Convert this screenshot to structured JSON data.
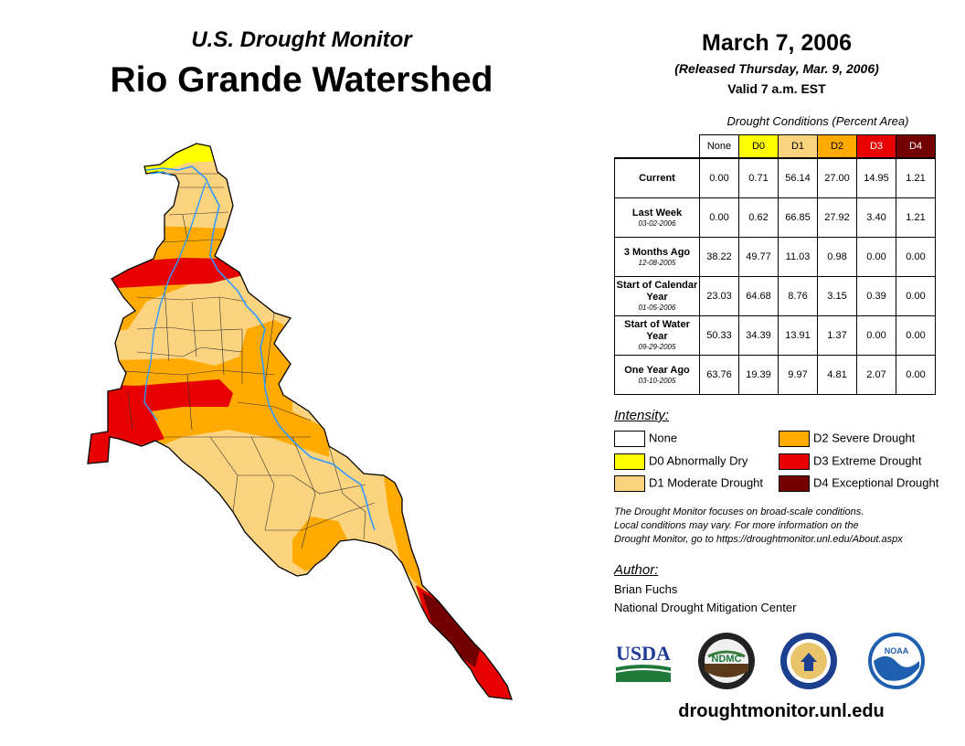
{
  "header": {
    "subtitle": "U.S. Drought Monitor",
    "title": "Rio Grande Watershed",
    "date": "March 7, 2006",
    "released": "(Released Thursday, Mar. 9, 2006)",
    "valid": "Valid 7 a.m. EST"
  },
  "table": {
    "caption": "Drought Conditions (Percent Area)",
    "columns": [
      "None",
      "D0",
      "D1",
      "D2",
      "D3",
      "D4"
    ],
    "column_colors": [
      "#ffffff",
      "#ffff00",
      "#fcd37f",
      "#ffaa00",
      "#e60000",
      "#730000"
    ],
    "rows": [
      {
        "label": "Current",
        "date": "",
        "values": [
          "0.00",
          "0.71",
          "56.14",
          "27.00",
          "14.95",
          "1.21"
        ]
      },
      {
        "label": "Last Week",
        "date": "03-02-2006",
        "values": [
          "0.00",
          "0.62",
          "66.85",
          "27.92",
          "3.40",
          "1.21"
        ]
      },
      {
        "label": "3 Months Ago",
        "date": "12-08-2005",
        "values": [
          "38.22",
          "49.77",
          "11.03",
          "0.98",
          "0.00",
          "0.00"
        ]
      },
      {
        "label": "Start of Calendar Year",
        "date": "01-05-2006",
        "values": [
          "23.03",
          "64.68",
          "8.76",
          "3.15",
          "0.39",
          "0.00"
        ]
      },
      {
        "label": "Start of Water Year",
        "date": "09-29-2005",
        "values": [
          "50.33",
          "34.39",
          "13.91",
          "1.37",
          "0.00",
          "0.00"
        ]
      },
      {
        "label": "One Year Ago",
        "date": "03-10-2005",
        "values": [
          "63.76",
          "19.39",
          "9.97",
          "4.81",
          "2.07",
          "0.00"
        ]
      }
    ]
  },
  "legend": {
    "title": "Intensity:",
    "items": [
      {
        "label": "None",
        "color": "#ffffff"
      },
      {
        "label": "D0 Abnormally Dry",
        "color": "#ffff00"
      },
      {
        "label": "D1 Moderate Drought",
        "color": "#fcd37f"
      },
      {
        "label": "D2 Severe Drought",
        "color": "#ffaa00"
      },
      {
        "label": "D3 Extreme Drought",
        "color": "#e60000"
      },
      {
        "label": "D4 Exceptional Drought",
        "color": "#730000"
      }
    ]
  },
  "note": {
    "line1": "The Drought Monitor focuses on broad-scale conditions.",
    "line2": "Local conditions may vary. For more information on the",
    "line3": "Drought Monitor, go to https://droughtmonitor.unl.edu/About.aspx"
  },
  "author": {
    "title": "Author:",
    "name": "Brian Fuchs",
    "org": "National Drought Mitigation Center"
  },
  "logos": {
    "usda": "USDA",
    "ndmc": "NDMC",
    "noaa": "NOAA",
    "usda_icon": "usda-logo-icon",
    "ndmc_icon": "ndmc-logo-icon",
    "commerce_icon": "commerce-seal-icon",
    "noaa_icon": "noaa-logo-icon"
  },
  "website": "droughtmonitor.unl.edu",
  "map": {
    "region": "Rio Grande Watershed",
    "colors": {
      "d0": "#ffff00",
      "d1": "#fcd37f",
      "d2": "#ffaa00",
      "d3": "#e60000",
      "d4": "#730000",
      "river": "#3399ff"
    }
  }
}
